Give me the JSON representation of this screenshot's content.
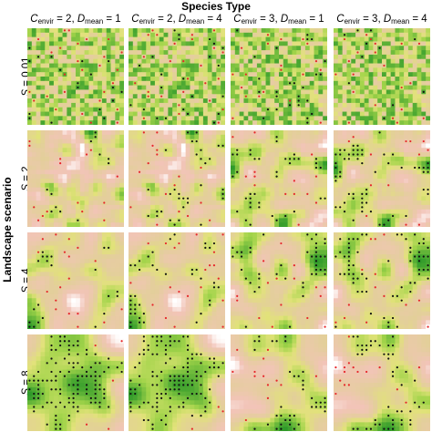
{
  "figure": {
    "title": "Species Type",
    "side_title": "Landscape scenario",
    "columns": [
      {
        "c_val": "2",
        "d_val": "1"
      },
      {
        "c_val": "2",
        "d_val": "4"
      },
      {
        "c_val": "3",
        "d_val": "1"
      },
      {
        "c_val": "3",
        "d_val": "4"
      }
    ],
    "col_symbols": {
      "c": "C",
      "c_sub": "envir",
      "d": "D",
      "d_sub": "mean",
      "sep": ",",
      "eq": "="
    },
    "rows": [
      {
        "s_val": "0.01"
      },
      {
        "s_val": "2"
      },
      {
        "s_val": "4"
      },
      {
        "s_val": "8"
      }
    ],
    "row_symbol": "S",
    "colors": {
      "low": "#f2c4b8",
      "mid_low": "#e3cf9a",
      "mid": "#e2e27a",
      "high": "#a2d44a",
      "max": "#2f9a2a",
      "white": "#ffffff",
      "red_dot": "#e6262a",
      "black_dot": "#111111"
    }
  }
}
